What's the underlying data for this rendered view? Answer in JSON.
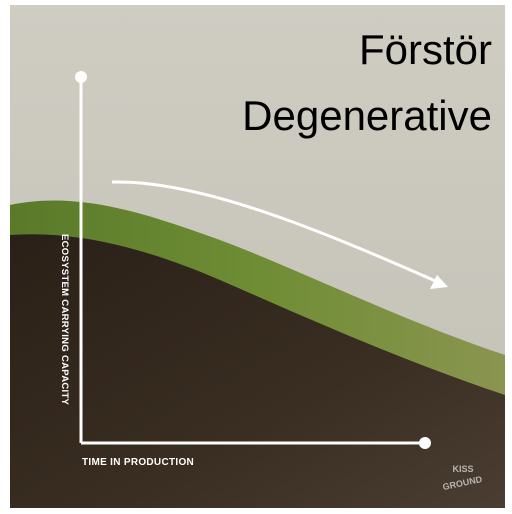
{
  "title": {
    "lines": [
      "Förstör",
      "Degenerative"
    ]
  },
  "diagram": {
    "y_axis_label": "ECOSYSTEM CARRYING CAPACITY",
    "x_axis_label": "TIME IN PRODUCTION"
  },
  "logo": {
    "lines": [
      "KISS",
      "GROUND"
    ]
  }
}
